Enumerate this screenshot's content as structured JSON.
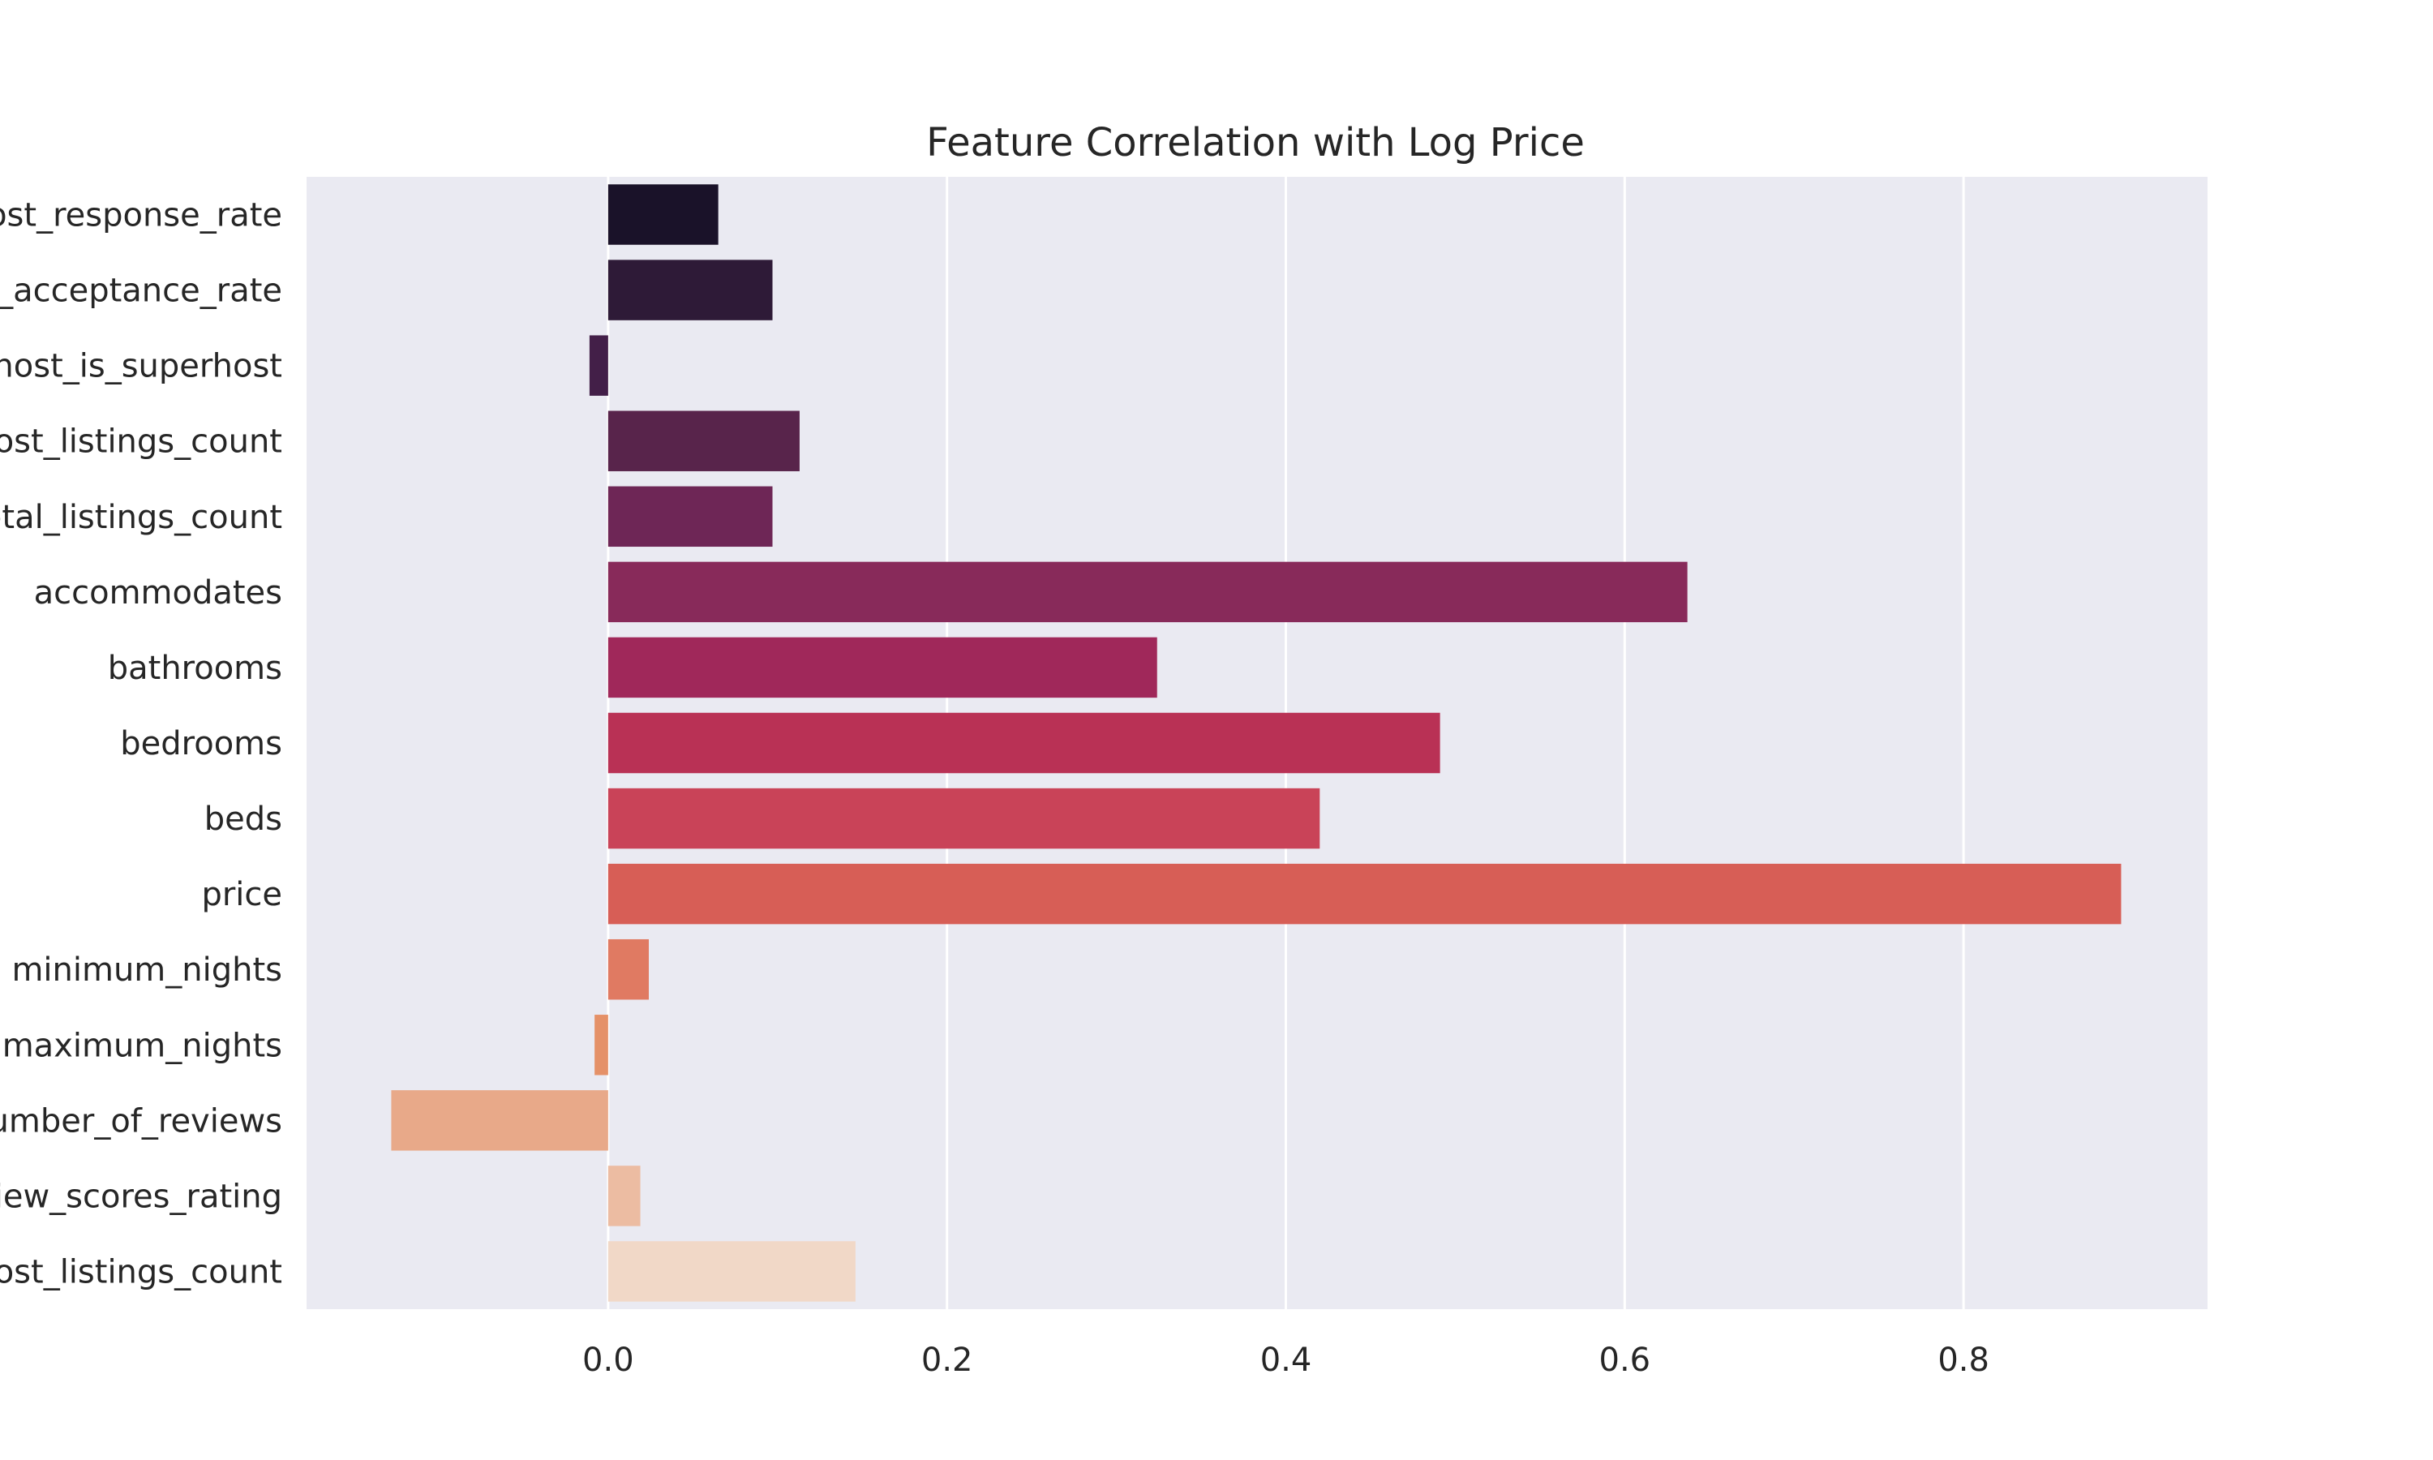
{
  "chart_data": {
    "type": "bar",
    "orientation": "horizontal",
    "title": "Feature Correlation with Log Price",
    "xlabel": "",
    "ylabel": "",
    "categories": [
      "host_response_rate",
      "host_acceptance_rate",
      "host_is_superhost",
      "host_listings_count",
      "host_total_listings_count",
      "accommodates",
      "bathrooms",
      "bedrooms",
      "beds",
      "price",
      "minimum_nights",
      "maximum_nights",
      "number_of_reviews",
      "review_scores_rating",
      "calculated_host_listings_count"
    ],
    "values": [
      0.065,
      0.097,
      -0.011,
      0.113,
      0.097,
      0.637,
      0.324,
      0.491,
      0.42,
      0.893,
      0.024,
      -0.008,
      -0.128,
      0.019,
      0.146
    ],
    "colors": [
      "#1a1229",
      "#2e1a37",
      "#431f48",
      "#58244b",
      "#6e2656",
      "#882a5a",
      "#a0285a",
      "#b93155",
      "#c94358",
      "#d75e56",
      "#e07a62",
      "#e59168",
      "#e8a989",
      "#ecbca2",
      "#f1d8c7"
    ],
    "xlim": [
      -0.178,
      0.944
    ],
    "xticks": [
      0.0,
      0.2,
      0.4,
      0.6,
      0.8
    ],
    "xtick_labels": [
      "0.0",
      "0.2",
      "0.4",
      "0.6",
      "0.8"
    ],
    "grid": true,
    "legend": "none",
    "background": "#eaeaf2",
    "grid_color": "#ffffff"
  }
}
